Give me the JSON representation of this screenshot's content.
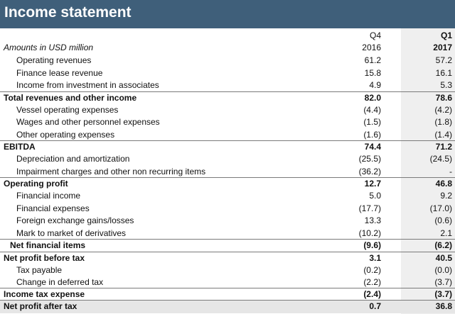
{
  "title": "Income statement",
  "header": {
    "label": "Amounts in USD million",
    "col1_top": "Q4",
    "col1_bottom": "2016",
    "col2_top": "Q1",
    "col2_bottom": "2017"
  },
  "rows": [
    {
      "label": "Operating revenues",
      "q4_2016": "61.2",
      "q1_2017": "57.2"
    },
    {
      "label": "Finance lease revenue",
      "q4_2016": "15.8",
      "q1_2017": "16.1"
    },
    {
      "label": "Income from investment in associates",
      "q4_2016": "4.9",
      "q1_2017": "5.3"
    },
    {
      "label": "Total revenues and other income",
      "q4_2016": "82.0",
      "q1_2017": "78.6"
    },
    {
      "label": "Vessel operating expenses",
      "q4_2016": "(4.4)",
      "q1_2017": "(4.2)"
    },
    {
      "label": "Wages and other personnel expenses",
      "q4_2016": "(1.5)",
      "q1_2017": "(1.8)"
    },
    {
      "label": "Other operating expenses",
      "q4_2016": "(1.6)",
      "q1_2017": "(1.4)"
    },
    {
      "label": "EBITDA",
      "q4_2016": "74.4",
      "q1_2017": "71.2"
    },
    {
      "label": "Depreciation and amortization",
      "q4_2016": "(25.5)",
      "q1_2017": "(24.5)"
    },
    {
      "label": "Impairment charges and other non recurring items",
      "q4_2016": "(36.2)",
      "q1_2017": "-"
    },
    {
      "label": "Operating profit",
      "q4_2016": "12.7",
      "q1_2017": "46.8"
    },
    {
      "label": "Financial income",
      "q4_2016": "5.0",
      "q1_2017": "9.2"
    },
    {
      "label": "Financial expenses",
      "q4_2016": "(17.7)",
      "q1_2017": "(17.0)"
    },
    {
      "label": "Foreign exchange gains/losses",
      "q4_2016": "13.3",
      "q1_2017": "(0.6)"
    },
    {
      "label": "Mark to market of derivatives",
      "q4_2016": "(10.2)",
      "q1_2017": "2.1"
    },
    {
      "label": "Net financial items",
      "q4_2016": "(9.6)",
      "q1_2017": "(6.2)"
    },
    {
      "label": "Net profit before tax",
      "q4_2016": "3.1",
      "q1_2017": "40.5"
    },
    {
      "label": "Tax payable",
      "q4_2016": "(0.2)",
      "q1_2017": "(0.0)"
    },
    {
      "label": "Change in deferred tax",
      "q4_2016": "(2.2)",
      "q1_2017": "(3.7)"
    },
    {
      "label": "Income tax expense",
      "q4_2016": "(2.4)",
      "q1_2017": "(3.7)"
    },
    {
      "label": "Net profit after tax",
      "q4_2016": "0.7",
      "q1_2017": "36.8"
    }
  ]
}
